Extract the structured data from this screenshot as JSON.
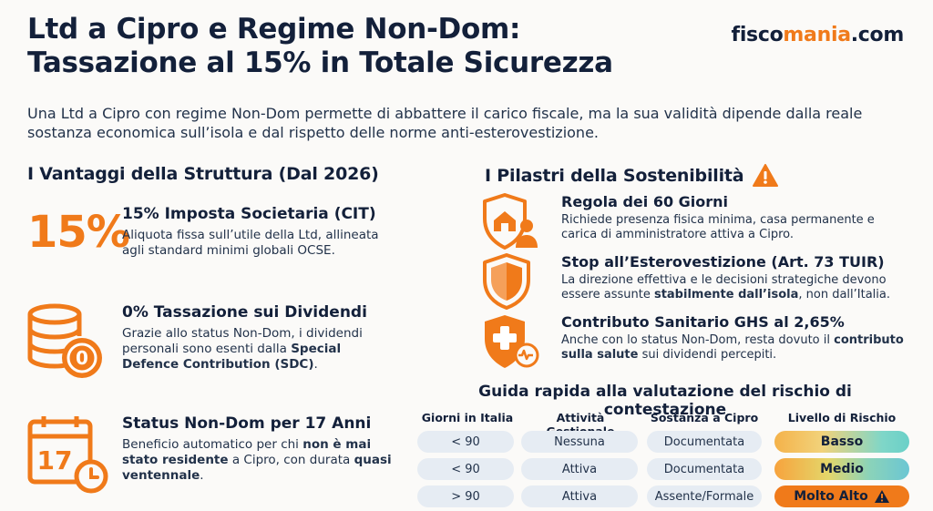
{
  "header": {
    "title_line1": "Ltd a Cipro e Regime Non-Dom:",
    "title_line2": "Tassazione al 15% in Totale Sicurezza",
    "logo_main": "fisco",
    "logo_accent": "mania",
    "logo_tld": ".com",
    "subtitle": "Una Ltd a Cipro con regime Non-Dom permette di abbattere il carico fiscale, ma la sua validità dipende dalla reale sostanza economica sull’isola e dal rispetto delle norme anti-esterovestizione."
  },
  "left": {
    "section_title": "I Vantaggi della Struttura (Dal 2026)",
    "big_percent": "15%",
    "features": [
      {
        "icon": "percent-icon",
        "title": "15% Imposta Societaria (CIT)",
        "body": "Aliquota fissa sull’utile della Ltd, allineata agli standard minimi globali OCSE."
      },
      {
        "icon": "coins-stack-icon",
        "title": "0% Tassazione sui Dividendi",
        "body_pre": "Grazie allo status Non-Dom, i dividendi personali sono esenti dalla ",
        "body_bold": "Special Defence Contribution (SDC)",
        "body_post": "."
      },
      {
        "icon": "calendar-icon",
        "calendar_number": "17",
        "title": "Status Non-Dom per 17 Anni",
        "body_pre": "Beneficio automatico per chi ",
        "body_bold1": "non è mai stato residente",
        "body_mid": " a Cipro, con durata ",
        "body_bold2": "quasi ventennale",
        "body_post": "."
      }
    ]
  },
  "right": {
    "section_title": "I Pilastri della Sostenibilità",
    "pillars": [
      {
        "icon": "house-shield-icon",
        "title": "Regola dei 60 Giorni",
        "body": "Richiede presenza fisica minima, casa permanente e carica di amministratore attiva a Cipro."
      },
      {
        "icon": "shield-icon",
        "title": "Stop all’Esterovestizione (Art. 73 TUIR)",
        "body_pre": "La direzione effettiva e le decisioni strategiche devono essere assunte ",
        "body_bold": "stabilmente dall’isola",
        "body_post": ", non dall’Italia."
      },
      {
        "icon": "health-shield-icon",
        "title": "Contributo Sanitario GHS al 2,65%",
        "body_pre": "Anche con lo status Non-Dom, resta dovuto il ",
        "body_bold": "contributo sulla salute",
        "body_post": " sui dividendi percepiti."
      }
    ]
  },
  "guide": {
    "title": "Guida rapida alla valutazione del rischio di contestazione",
    "headers": [
      "Giorni in Italia",
      "Attività Gestionale",
      "Sostanza a Cipro",
      "Livello di Rischio"
    ],
    "rows": [
      {
        "giorni": "< 90",
        "attivita": "Nessuna",
        "sostanza": "Documentata",
        "rischio": "Basso"
      },
      {
        "giorni": "< 90",
        "attivita": "Attiva",
        "sostanza": "Documentata",
        "rischio": "Medio"
      },
      {
        "giorni": "> 90",
        "attivita": "Attiva",
        "sostanza": "Assente/Formale",
        "rischio": "Molto Alto"
      }
    ]
  },
  "colors": {
    "accent": "#f07a1a",
    "navy": "#13203a",
    "pill": "#e6ecf3"
  }
}
